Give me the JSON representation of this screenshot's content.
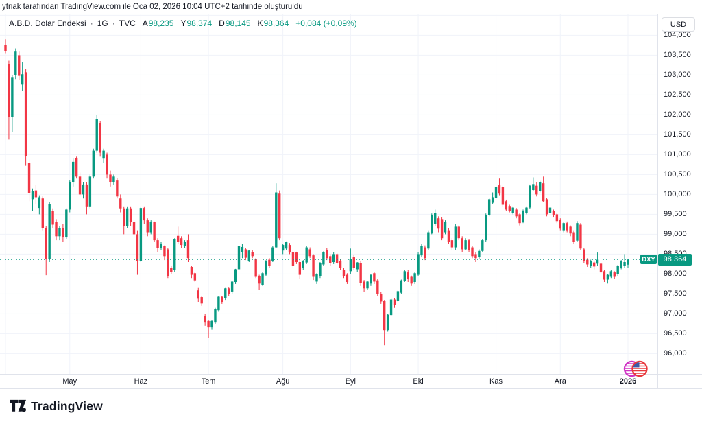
{
  "attribution": {
    "text": "ytnak tarafından TradingView.com ile Oca 02, 2026 10:04 UTC+2 tarihinde oluşturuldu"
  },
  "legend": {
    "symbol": "A.B.D. Dolar Endeksi",
    "separator": "·",
    "interval": "1G",
    "exchange": "TVC",
    "ohlc": [
      {
        "label": "A",
        "value": "98,235"
      },
      {
        "label": "Y",
        "value": "98,374"
      },
      {
        "label": "D",
        "value": "98,145"
      },
      {
        "label": "K",
        "value": "98,364"
      }
    ],
    "change": "+0,084 (+0,09%)"
  },
  "price_axis": {
    "currency_button": "USD",
    "instrument_badge": "DXY",
    "last_price_label": "98,364",
    "last_price_value": 98.364,
    "ticks": [
      {
        "label": "104,000",
        "value": 104.0
      },
      {
        "label": "103,500",
        "value": 103.5
      },
      {
        "label": "103,000",
        "value": 103.0
      },
      {
        "label": "102,500",
        "value": 102.5
      },
      {
        "label": "102,000",
        "value": 102.0
      },
      {
        "label": "101,500",
        "value": 101.5
      },
      {
        "label": "101,000",
        "value": 101.0
      },
      {
        "label": "100,500",
        "value": 100.5
      },
      {
        "label": "100,000",
        "value": 100.0
      },
      {
        "label": "99,500",
        "value": 99.5
      },
      {
        "label": "99,000",
        "value": 99.0
      },
      {
        "label": "98,500",
        "value": 98.5
      },
      {
        "label": "98,000",
        "value": 98.0
      },
      {
        "label": "97,500",
        "value": 97.5
      },
      {
        "label": "97,000",
        "value": 97.0
      },
      {
        "label": "96,500",
        "value": 96.5
      },
      {
        "label": "96,000",
        "value": 96.0
      }
    ]
  },
  "logo": {
    "text": "TradingView"
  },
  "colors": {
    "up": "#089981",
    "down": "#f23645",
    "text": "#131722",
    "grid": "#f0f3fa",
    "axis_line": "#e0e3eb",
    "price_line": "#089981",
    "badge_bg": "#089981"
  },
  "chart_data": {
    "type": "candlestick",
    "title": "A.B.D. Dolar Endeksi",
    "interval": "1G",
    "exchange": "TVC",
    "legend_position": "top-left",
    "grid": true,
    "ylim_visible": [
      96.0,
      104.0
    ],
    "grid_step": 0.5,
    "last_price": 98.364,
    "change": 0.084,
    "change_pct": 0.09,
    "months": [
      {
        "label": "",
        "index": 0
      },
      {
        "label": "May",
        "index": 19
      },
      {
        "label": "Haz",
        "index": 40
      },
      {
        "label": "Tem",
        "index": 60
      },
      {
        "label": "Ağu",
        "index": 82
      },
      {
        "label": "Eyl",
        "index": 102
      },
      {
        "label": "Eki",
        "index": 122
      },
      {
        "label": "Kas",
        "index": 145
      },
      {
        "label": "Ara",
        "index": 164
      },
      {
        "label": "2026",
        "index": 184
      }
    ],
    "candles": [
      [
        103.75,
        103.9,
        103.55,
        103.6
      ],
      [
        103.28,
        103.36,
        101.38,
        101.95
      ],
      [
        101.95,
        103.0,
        101.57,
        102.95
      ],
      [
        103.0,
        103.67,
        102.9,
        103.59
      ],
      [
        103.5,
        103.59,
        102.88,
        102.98
      ],
      [
        102.76,
        103.33,
        102.6,
        103.02
      ],
      [
        103.07,
        103.15,
        100.72,
        100.97
      ],
      [
        100.8,
        100.88,
        99.83,
        100.04
      ],
      [
        99.88,
        100.15,
        99.59,
        100.08
      ],
      [
        100.1,
        100.25,
        99.75,
        99.93
      ],
      [
        99.66,
        99.98,
        99.5,
        99.93
      ],
      [
        99.9,
        99.95,
        99.1,
        99.15
      ],
      [
        99.15,
        99.2,
        97.97,
        98.37
      ],
      [
        98.37,
        99.8,
        98.3,
        99.75
      ],
      [
        99.58,
        99.65,
        99.15,
        99.24
      ],
      [
        99.3,
        99.38,
        98.85,
        98.95
      ],
      [
        98.95,
        99.2,
        98.85,
        99.15
      ],
      [
        99.15,
        99.25,
        98.8,
        98.92
      ],
      [
        98.92,
        99.65,
        98.88,
        99.62
      ],
      [
        99.62,
        100.35,
        99.55,
        100.3
      ],
      [
        100.3,
        100.9,
        100.2,
        100.82
      ],
      [
        100.92,
        100.95,
        100.4,
        100.45
      ],
      [
        100.45,
        100.55,
        99.95,
        100.0
      ],
      [
        100.0,
        100.3,
        99.9,
        100.25
      ],
      [
        100.25,
        100.3,
        99.5,
        99.7
      ],
      [
        99.7,
        100.5,
        99.65,
        100.45
      ],
      [
        100.45,
        101.15,
        100.4,
        101.1
      ],
      [
        101.1,
        102.0,
        101.05,
        101.9
      ],
      [
        101.8,
        101.85,
        100.95,
        101.05
      ],
      [
        100.9,
        101.15,
        100.8,
        101.1
      ],
      [
        101.0,
        101.05,
        100.4,
        100.5
      ],
      [
        100.5,
        100.6,
        100.2,
        100.3
      ],
      [
        100.3,
        100.5,
        100.25,
        100.45
      ],
      [
        100.35,
        100.42,
        99.9,
        99.95
      ],
      [
        99.9,
        100.0,
        99.55,
        99.65
      ],
      [
        99.65,
        99.7,
        99.0,
        99.2
      ],
      [
        99.2,
        99.7,
        99.15,
        99.65
      ],
      [
        99.65,
        99.7,
        99.2,
        99.3
      ],
      [
        99.3,
        99.35,
        98.9,
        99.0
      ],
      [
        99.0,
        99.1,
        97.98,
        98.33
      ],
      [
        98.33,
        99.7,
        98.3,
        99.66
      ],
      [
        99.66,
        99.7,
        99.25,
        99.35
      ],
      [
        99.35,
        99.4,
        98.95,
        99.05
      ],
      [
        99.05,
        99.35,
        99.0,
        99.3
      ],
      [
        99.3,
        99.32,
        98.8,
        98.85
      ],
      [
        98.85,
        98.9,
        98.55,
        98.65
      ],
      [
        98.65,
        98.8,
        98.6,
        98.75
      ],
      [
        98.7,
        98.72,
        98.35,
        98.45
      ],
      [
        98.62,
        98.65,
        97.9,
        97.95
      ],
      [
        98.15,
        98.2,
        98.0,
        98.05
      ],
      [
        98.11,
        98.9,
        98.05,
        98.88
      ],
      [
        98.96,
        99.19,
        98.75,
        98.81
      ],
      [
        98.9,
        98.95,
        98.65,
        98.73
      ],
      [
        98.7,
        98.85,
        98.65,
        98.8
      ],
      [
        98.85,
        99.0,
        98.3,
        98.4
      ],
      [
        98.18,
        98.2,
        97.9,
        97.98
      ],
      [
        98.02,
        98.05,
        97.8,
        97.84
      ],
      [
        97.59,
        97.65,
        97.3,
        97.38
      ],
      [
        97.42,
        97.45,
        97.2,
        97.26
      ],
      [
        96.95,
        97.0,
        96.7,
        96.78
      ],
      [
        96.82,
        96.85,
        96.4,
        96.66
      ],
      [
        96.66,
        96.85,
        96.6,
        96.82
      ],
      [
        96.78,
        97.15,
        96.75,
        97.12
      ],
      [
        97.09,
        97.45,
        97.05,
        97.43
      ],
      [
        97.43,
        97.45,
        97.25,
        97.3
      ],
      [
        97.4,
        97.65,
        97.35,
        97.64
      ],
      [
        97.64,
        97.66,
        97.45,
        97.49
      ],
      [
        97.56,
        97.82,
        97.5,
        97.81
      ],
      [
        97.8,
        98.13,
        97.75,
        98.12
      ],
      [
        98.12,
        98.8,
        98.1,
        98.71
      ],
      [
        98.55,
        98.75,
        98.4,
        98.68
      ],
      [
        98.62,
        98.66,
        98.35,
        98.41
      ],
      [
        98.33,
        98.6,
        98.3,
        98.59
      ],
      [
        98.55,
        98.6,
        98.4,
        98.45
      ],
      [
        98.38,
        98.4,
        97.9,
        97.93
      ],
      [
        97.95,
        97.98,
        97.6,
        97.76
      ],
      [
        97.73,
        98.05,
        97.7,
        98.02
      ],
      [
        97.98,
        98.35,
        97.95,
        98.33
      ],
      [
        98.36,
        98.4,
        98.15,
        98.21
      ],
      [
        98.33,
        98.7,
        98.3,
        98.67
      ],
      [
        98.67,
        100.28,
        98.65,
        100.05
      ],
      [
        100.02,
        100.1,
        98.85,
        98.9
      ],
      [
        98.59,
        98.75,
        98.5,
        98.73
      ],
      [
        98.64,
        98.82,
        98.6,
        98.8
      ],
      [
        98.73,
        98.78,
        98.5,
        98.54
      ],
      [
        98.55,
        98.6,
        98.15,
        98.21
      ],
      [
        98.54,
        98.56,
        98.25,
        98.3
      ],
      [
        98.3,
        98.35,
        97.88,
        97.98
      ],
      [
        98.16,
        98.35,
        98.1,
        98.33
      ],
      [
        98.29,
        98.7,
        98.25,
        98.67
      ],
      [
        98.62,
        98.67,
        98.4,
        98.45
      ],
      [
        98.47,
        98.5,
        97.85,
        97.93
      ],
      [
        97.81,
        98.02,
        97.75,
        98.0
      ],
      [
        97.95,
        98.3,
        97.9,
        98.28
      ],
      [
        98.24,
        98.57,
        98.2,
        98.55
      ],
      [
        98.6,
        98.65,
        98.35,
        98.4
      ],
      [
        98.45,
        98.5,
        98.2,
        98.28
      ],
      [
        98.3,
        98.55,
        98.25,
        98.5
      ],
      [
        98.5,
        98.52,
        98.24,
        98.28
      ],
      [
        98.33,
        98.38,
        98.1,
        98.16
      ],
      [
        98.1,
        98.15,
        97.9,
        97.95
      ],
      [
        97.98,
        98.02,
        97.75,
        97.8
      ],
      [
        98.07,
        98.64,
        98.0,
        98.38
      ],
      [
        98.42,
        98.48,
        98.1,
        98.16
      ],
      [
        98.12,
        98.3,
        98.05,
        98.29
      ],
      [
        98.28,
        98.32,
        97.7,
        97.78
      ],
      [
        97.81,
        97.85,
        97.55,
        97.64
      ],
      [
        97.64,
        97.83,
        97.6,
        97.81
      ],
      [
        97.76,
        98.0,
        97.7,
        97.98
      ],
      [
        98.02,
        98.05,
        97.75,
        97.81
      ],
      [
        97.84,
        97.88,
        97.45,
        97.49
      ],
      [
        97.5,
        97.55,
        97.25,
        97.31
      ],
      [
        97.33,
        97.35,
        96.21,
        96.59
      ],
      [
        96.59,
        97.0,
        96.55,
        96.98
      ],
      [
        96.97,
        97.4,
        96.95,
        97.36
      ],
      [
        97.36,
        97.4,
        97.15,
        97.22
      ],
      [
        97.33,
        97.6,
        97.3,
        97.57
      ],
      [
        97.53,
        97.86,
        97.5,
        97.84
      ],
      [
        97.82,
        98.1,
        97.8,
        98.07
      ],
      [
        98.04,
        98.1,
        97.8,
        97.87
      ],
      [
        97.93,
        97.96,
        97.7,
        97.76
      ],
      [
        97.8,
        98.05,
        97.75,
        98.02
      ],
      [
        97.98,
        98.55,
        97.95,
        98.5
      ],
      [
        98.47,
        98.75,
        98.42,
        98.71
      ],
      [
        98.67,
        98.72,
        98.35,
        98.4
      ],
      [
        98.64,
        99.1,
        98.6,
        99.05
      ],
      [
        99.02,
        99.52,
        99.0,
        99.49
      ],
      [
        99.26,
        99.62,
        99.2,
        99.54
      ],
      [
        99.4,
        99.45,
        99.05,
        99.14
      ],
      [
        99.38,
        99.42,
        98.85,
        98.9
      ],
      [
        99.05,
        99.35,
        99.0,
        99.31
      ],
      [
        99.1,
        99.15,
        98.75,
        98.81
      ],
      [
        98.85,
        98.9,
        98.6,
        98.67
      ],
      [
        98.67,
        99.25,
        98.6,
        99.19
      ],
      [
        99.19,
        99.22,
        98.85,
        98.9
      ],
      [
        98.9,
        98.95,
        98.55,
        98.62
      ],
      [
        98.62,
        98.9,
        98.6,
        98.85
      ],
      [
        98.85,
        98.88,
        98.55,
        98.6
      ],
      [
        98.67,
        98.7,
        98.4,
        98.45
      ],
      [
        98.5,
        98.55,
        98.3,
        98.4
      ],
      [
        98.42,
        98.62,
        98.38,
        98.58
      ],
      [
        98.58,
        98.88,
        98.55,
        98.85
      ],
      [
        98.85,
        99.52,
        98.8,
        99.48
      ],
      [
        99.48,
        99.9,
        99.45,
        99.88
      ],
      [
        99.79,
        100.05,
        99.75,
        99.93
      ],
      [
        99.91,
        100.22,
        99.88,
        100.19
      ],
      [
        100.23,
        100.4,
        99.98,
        100.02
      ],
      [
        100.19,
        100.22,
        99.7,
        99.74
      ],
      [
        99.83,
        99.87,
        99.58,
        99.62
      ],
      [
        99.71,
        99.74,
        99.55,
        99.59
      ],
      [
        99.54,
        99.7,
        99.5,
        99.67
      ],
      [
        99.62,
        99.66,
        99.4,
        99.45
      ],
      [
        99.5,
        99.53,
        99.22,
        99.28
      ],
      [
        99.31,
        99.62,
        99.28,
        99.59
      ],
      [
        99.54,
        99.7,
        99.5,
        99.67
      ],
      [
        99.67,
        100.25,
        99.64,
        100.22
      ],
      [
        100.11,
        100.43,
        100.08,
        100.26
      ],
      [
        100.22,
        100.3,
        99.95,
        100.0
      ],
      [
        100.09,
        100.34,
        100.05,
        100.31
      ],
      [
        100.28,
        100.45,
        99.8,
        99.83
      ],
      [
        99.88,
        99.92,
        99.45,
        99.5
      ],
      [
        99.54,
        99.7,
        99.5,
        99.67
      ],
      [
        99.59,
        99.62,
        99.42,
        99.48
      ],
      [
        99.5,
        99.54,
        99.28,
        99.33
      ],
      [
        99.36,
        99.4,
        99.1,
        99.14
      ],
      [
        99.1,
        99.3,
        99.05,
        99.28
      ],
      [
        99.28,
        99.32,
        99.05,
        99.1
      ],
      [
        99.19,
        99.22,
        98.95,
        99.02
      ],
      [
        99.05,
        99.1,
        98.75,
        98.81
      ],
      [
        98.84,
        99.33,
        98.8,
        99.28
      ],
      [
        99.24,
        99.28,
        98.6,
        98.64
      ],
      [
        98.62,
        98.66,
        98.28,
        98.33
      ],
      [
        98.36,
        98.4,
        98.18,
        98.24
      ],
      [
        98.21,
        98.36,
        98.15,
        98.33
      ],
      [
        98.29,
        98.33,
        98.12,
        98.19
      ],
      [
        98.26,
        98.54,
        98.2,
        98.36
      ],
      [
        98.26,
        98.3,
        98.0,
        98.04
      ],
      [
        98.07,
        98.1,
        97.8,
        97.86
      ],
      [
        97.86,
        98.0,
        97.76,
        97.98
      ],
      [
        97.93,
        98.1,
        97.9,
        98.07
      ],
      [
        98.04,
        98.07,
        97.88,
        97.93
      ],
      [
        97.99,
        98.23,
        97.95,
        98.21
      ],
      [
        98.16,
        98.35,
        98.12,
        98.33
      ],
      [
        98.2,
        98.5,
        98.16,
        98.3
      ],
      [
        98.235,
        98.374,
        98.145,
        98.364
      ]
    ]
  }
}
